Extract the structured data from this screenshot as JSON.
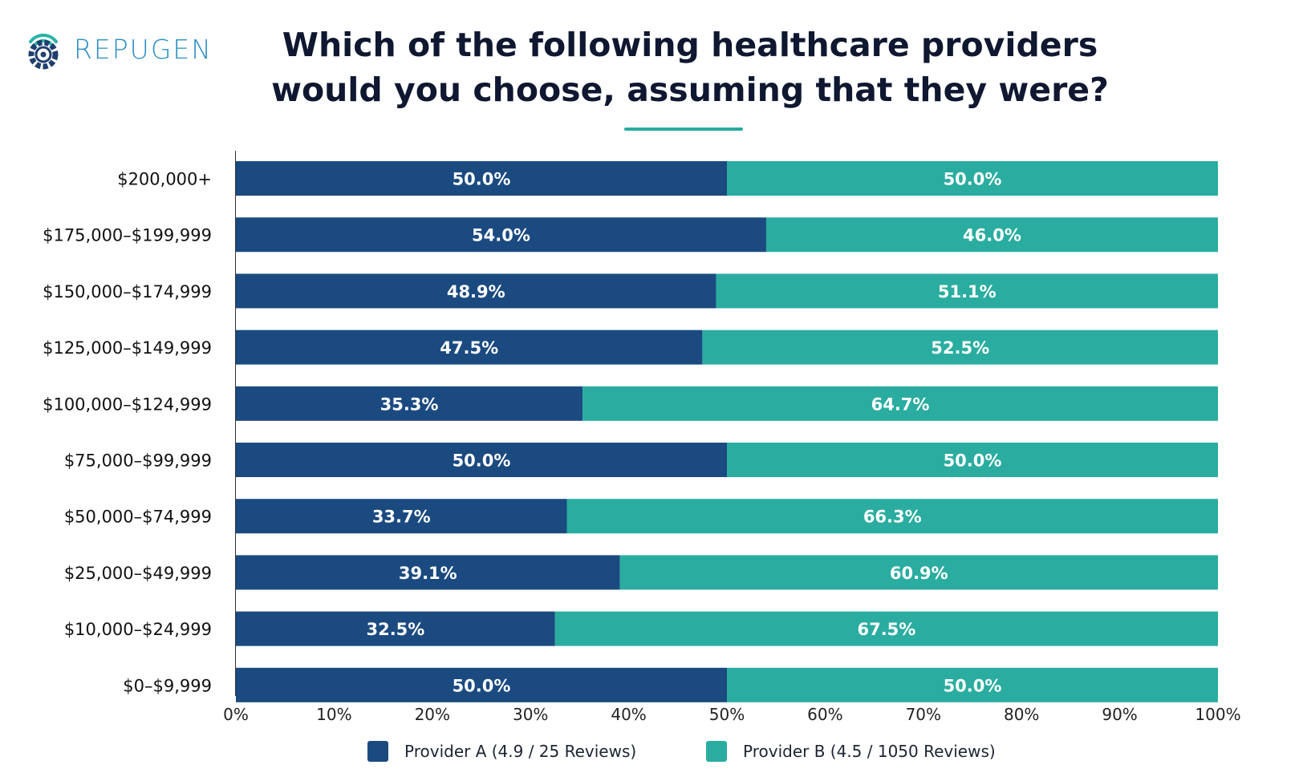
{
  "brand": {
    "name": "REPUGEN",
    "logo_icon": "repugen-gear-wifi-icon"
  },
  "colors": {
    "provider_a": "#1b4a80",
    "provider_b": "#2aada0",
    "accent": "#28ac9f",
    "brand": "#2c8fc4"
  },
  "chart_data": {
    "type": "bar",
    "orientation": "horizontal",
    "stacked": true,
    "title": "Which of the following healthcare providers would you choose, assuming that they were?",
    "categories": [
      "$200,000+",
      "$175,000–$199,999",
      "$150,000–$174,999",
      "$125,000–$149,999",
      "$100,000–$124,999",
      "$75,000–$99,999",
      "$50,000–$74,999",
      "$25,000–$49,999",
      "$10,000–$24,999",
      "$0–$9,999"
    ],
    "series": [
      {
        "name": "Provider A (4.9 / 25 Reviews)",
        "values": [
          50.0,
          54.0,
          48.9,
          47.5,
          35.3,
          50.0,
          33.7,
          39.1,
          32.5,
          50.0
        ],
        "labels": [
          "50.0%",
          "54.0%",
          "48.9%",
          "47.5%",
          "35.3%",
          "50.0%",
          "33.7%",
          "39.1%",
          "32.5%",
          "50.0%"
        ]
      },
      {
        "name": "Provider B (4.5 / 1050 Reviews)",
        "values": [
          50.0,
          46.0,
          51.1,
          52.5,
          64.7,
          50.0,
          66.3,
          60.9,
          67.5,
          50.0
        ],
        "labels": [
          "50.0%",
          "46.0%",
          "51.1%",
          "52.5%",
          "64.7%",
          "50.0%",
          "66.3%",
          "60.9%",
          "67.5%",
          "50.0%"
        ]
      }
    ],
    "xlim": [
      0,
      100
    ],
    "x_ticks": [
      "0%",
      "10%",
      "20%",
      "30%",
      "40%",
      "50%",
      "60%",
      "70%",
      "80%",
      "90%",
      "100%"
    ],
    "grid": false,
    "legend_position": "bottom"
  }
}
